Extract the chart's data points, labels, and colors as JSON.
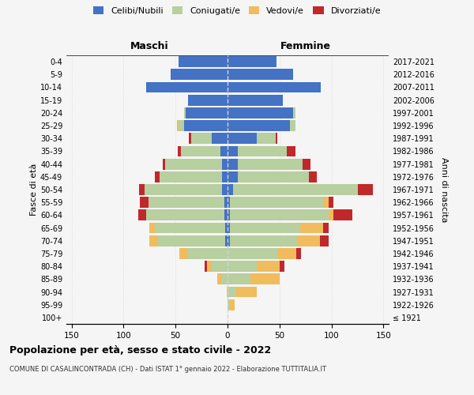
{
  "age_groups": [
    "100+",
    "95-99",
    "90-94",
    "85-89",
    "80-84",
    "75-79",
    "70-74",
    "65-69",
    "60-64",
    "55-59",
    "50-54",
    "45-49",
    "40-44",
    "35-39",
    "30-34",
    "25-29",
    "20-24",
    "15-19",
    "10-14",
    "5-9",
    "0-4"
  ],
  "birth_years": [
    "≤ 1921",
    "1922-1926",
    "1927-1931",
    "1932-1936",
    "1937-1941",
    "1942-1946",
    "1947-1951",
    "1952-1956",
    "1957-1961",
    "1962-1966",
    "1967-1971",
    "1972-1976",
    "1977-1981",
    "1982-1986",
    "1987-1991",
    "1992-1996",
    "1997-2001",
    "2002-2006",
    "2007-2011",
    "2012-2016",
    "2017-2021"
  ],
  "maschi": {
    "celibi": [
      0,
      0,
      0,
      0,
      0,
      0,
      2,
      2,
      3,
      3,
      5,
      5,
      5,
      7,
      15,
      42,
      40,
      38,
      78,
      55,
      47
    ],
    "coniugati": [
      0,
      0,
      0,
      5,
      15,
      38,
      65,
      68,
      75,
      73,
      75,
      60,
      55,
      38,
      20,
      5,
      2,
      0,
      0,
      0,
      0
    ],
    "vedovi": [
      0,
      0,
      1,
      5,
      5,
      8,
      8,
      5,
      0,
      0,
      0,
      0,
      0,
      0,
      0,
      2,
      0,
      0,
      0,
      0,
      0
    ],
    "divorziati": [
      0,
      0,
      0,
      0,
      2,
      0,
      0,
      0,
      8,
      8,
      5,
      5,
      2,
      3,
      2,
      0,
      0,
      0,
      0,
      0,
      0
    ]
  },
  "femmine": {
    "nubili": [
      0,
      0,
      0,
      0,
      0,
      0,
      2,
      2,
      2,
      2,
      5,
      10,
      10,
      10,
      28,
      60,
      63,
      53,
      90,
      63,
      47
    ],
    "coniugate": [
      0,
      2,
      8,
      22,
      28,
      48,
      65,
      68,
      95,
      90,
      120,
      68,
      62,
      47,
      18,
      5,
      2,
      0,
      0,
      0,
      0
    ],
    "vedove": [
      0,
      5,
      20,
      28,
      22,
      18,
      22,
      22,
      5,
      5,
      0,
      0,
      0,
      0,
      0,
      0,
      0,
      0,
      0,
      0,
      0
    ],
    "divorziate": [
      0,
      0,
      0,
      0,
      5,
      5,
      8,
      5,
      18,
      5,
      15,
      8,
      8,
      8,
      2,
      0,
      0,
      0,
      0,
      0,
      0
    ]
  },
  "colors": {
    "celibi_nubili": "#4472c4",
    "coniugati": "#b8cfa0",
    "vedovi": "#f0bc5e",
    "divorziati": "#c0282c"
  },
  "xlim": 155,
  "title": "Popolazione per età, sesso e stato civile - 2022",
  "subtitle": "COMUNE DI CASALINCONTRADA (CH) - Dati ISTAT 1° gennaio 2022 - Elaborazione TUTTITALIA.IT",
  "xlabel_left": "Maschi",
  "xlabel_right": "Femmine",
  "ylabel": "Fasce di età",
  "ylabel_right": "Anni di nascita",
  "background_color": "#f0f0f0"
}
